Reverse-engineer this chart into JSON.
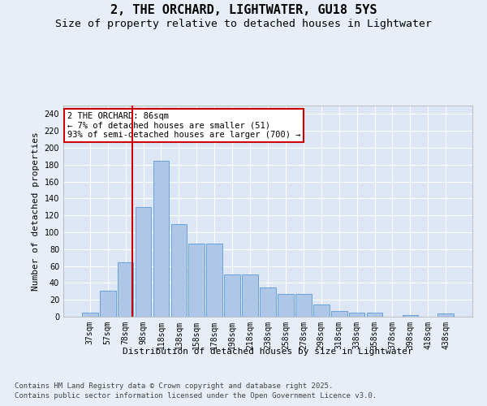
{
  "title_line1": "2, THE ORCHARD, LIGHTWATER, GU18 5YS",
  "title_line2": "Size of property relative to detached houses in Lightwater",
  "xlabel": "Distribution of detached houses by size in Lightwater",
  "ylabel": "Number of detached properties",
  "categories": [
    "37sqm",
    "57sqm",
    "78sqm",
    "98sqm",
    "118sqm",
    "138sqm",
    "158sqm",
    "178sqm",
    "198sqm",
    "218sqm",
    "238sqm",
    "258sqm",
    "278sqm",
    "298sqm",
    "318sqm",
    "338sqm",
    "358sqm",
    "378sqm",
    "398sqm",
    "418sqm",
    "438sqm"
  ],
  "values": [
    5,
    31,
    64,
    130,
    185,
    110,
    87,
    87,
    50,
    50,
    35,
    27,
    27,
    14,
    7,
    5,
    5,
    0,
    2,
    0,
    4
  ],
  "bar_color": "#aec6e8",
  "bar_edge_color": "#5b9bd5",
  "bg_color": "#e8eef7",
  "plot_bg_color": "#dce6f5",
  "grid_color": "#ffffff",
  "vline_color": "#cc0000",
  "annotation_text": "2 THE ORCHARD: 86sqm\n← 7% of detached houses are smaller (51)\n93% of semi-detached houses are larger (700) →",
  "annotation_box_color": "#cc0000",
  "ylim": [
    0,
    250
  ],
  "yticks": [
    0,
    20,
    40,
    60,
    80,
    100,
    120,
    140,
    160,
    180,
    200,
    220,
    240
  ],
  "footer_line1": "Contains HM Land Registry data © Crown copyright and database right 2025.",
  "footer_line2": "Contains public sector information licensed under the Open Government Licence v3.0.",
  "title_fontsize": 11,
  "subtitle_fontsize": 9.5,
  "axis_label_fontsize": 8,
  "tick_fontsize": 7,
  "annotation_fontsize": 7.5,
  "footer_fontsize": 6.5
}
